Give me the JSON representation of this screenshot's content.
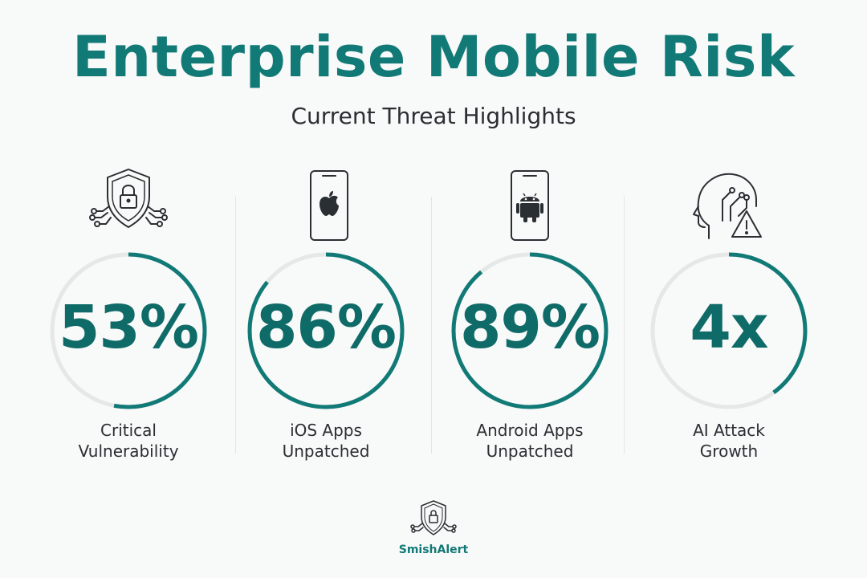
{
  "header": {
    "title": "Enterprise Mobile Risk",
    "subtitle": "Current Threat Highlights"
  },
  "stats": [
    {
      "value": "53%",
      "label_line1": "Critical",
      "label_line2": "Vulnerability",
      "icon": "shield-lock-icon",
      "level": 0.53
    },
    {
      "value": "86%",
      "label_line1": "iOS Apps",
      "label_line2": "Unpatched",
      "icon": "iphone-apple-icon",
      "level": 0.86
    },
    {
      "value": "89%",
      "label_line1": "Android Apps",
      "label_line2": "Unpatched",
      "icon": "android-phone-icon",
      "level": 0.89
    },
    {
      "value": "4x",
      "label_line1": "AI Attack",
      "label_line2": "Growth",
      "icon": "ai-head-warning-icon",
      "level": 0.4
    }
  ],
  "brand": {
    "name": "SmishAlert",
    "icon": "shield-lock-icon"
  },
  "colors": {
    "accent": "#127a76",
    "ring_track": "#e6e8e8",
    "text": "#2a2f33"
  }
}
